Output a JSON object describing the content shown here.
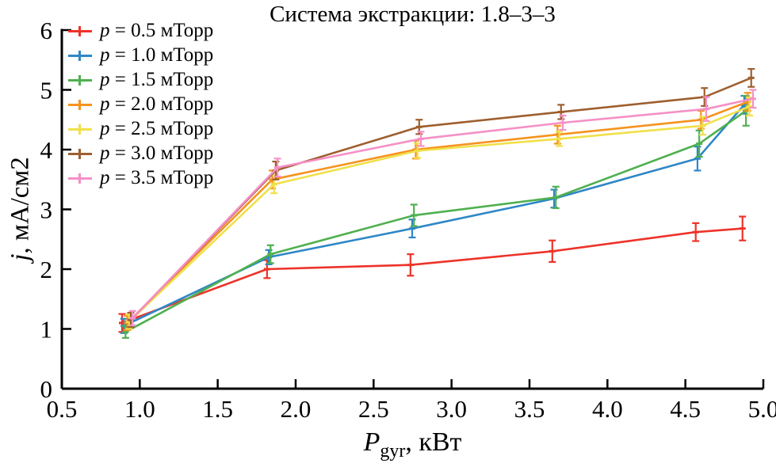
{
  "chart_data": {
    "type": "line",
    "title": "Система экстракции: 1.8–3–3",
    "xlabel": {
      "var": "P",
      "sub": "gyr",
      "rest": ", кВт"
    },
    "ylabel": {
      "var": "j",
      "rest": ", мА/см2"
    },
    "xlim": [
      0.5,
      5.0
    ],
    "ylim": [
      0,
      6
    ],
    "xtick_labels": [
      "0.5",
      "1.0",
      "1.5",
      "2.0",
      "2.5",
      "3.0",
      "3.5",
      "4.0",
      "4.5",
      "5.0"
    ],
    "ytick_labels": [
      "0",
      "1",
      "2",
      "3",
      "4",
      "5",
      "6"
    ],
    "grid": false,
    "legend_position": "top-left",
    "x": [
      0.92,
      1.85,
      2.77,
      3.68,
      4.6,
      4.9
    ],
    "series": [
      {
        "label_var": "p",
        "label_rest": " = 0.5 мТорр",
        "color": "#ed3329",
        "values": [
          1.1,
          2.0,
          2.07,
          2.3,
          2.62,
          2.68
        ],
        "errors": [
          0.15,
          0.15,
          0.18,
          0.18,
          0.15,
          0.2
        ]
      },
      {
        "label_var": "p",
        "label_rest": " = 1.0 мТорр",
        "color": "#2f87c6",
        "values": [
          1.05,
          2.2,
          2.68,
          3.18,
          3.85,
          4.75
        ],
        "errors": [
          0.12,
          0.12,
          0.15,
          0.15,
          0.2,
          0.15
        ]
      },
      {
        "label_var": "p",
        "label_rest": " = 1.5 мТорр",
        "color": "#4fb04f",
        "values": [
          0.95,
          2.25,
          2.9,
          3.2,
          4.1,
          4.65
        ],
        "errors": [
          0.1,
          0.15,
          0.18,
          0.18,
          0.22,
          0.25
        ]
      },
      {
        "label_var": "p",
        "label_rest": " = 2.0 мТорр",
        "color": "#f6921e",
        "values": [
          1.1,
          3.5,
          4.0,
          4.25,
          4.5,
          4.8
        ],
        "errors": [
          0.12,
          0.15,
          0.15,
          0.15,
          0.15,
          0.15
        ]
      },
      {
        "label_var": "p",
        "label_rest": " = 2.5 мТорр",
        "color": "#f0e04a",
        "values": [
          1.12,
          3.42,
          3.98,
          4.18,
          4.4,
          4.72
        ],
        "errors": [
          0.12,
          0.15,
          0.12,
          0.12,
          0.15,
          0.15
        ]
      },
      {
        "label_var": "p",
        "label_rest": " = 3.0 мТорр",
        "color": "#9e5f2f",
        "values": [
          1.15,
          3.65,
          4.38,
          4.63,
          4.88,
          5.2
        ],
        "errors": [
          0.12,
          0.15,
          0.12,
          0.12,
          0.15,
          0.15
        ]
      },
      {
        "label_var": "p",
        "label_rest": " = 3.5 мТорр",
        "color": "#f590c6",
        "values": [
          1.18,
          3.7,
          4.18,
          4.45,
          4.68,
          4.85
        ],
        "errors": [
          0.12,
          0.15,
          0.12,
          0.12,
          0.2,
          0.15
        ]
      }
    ]
  }
}
